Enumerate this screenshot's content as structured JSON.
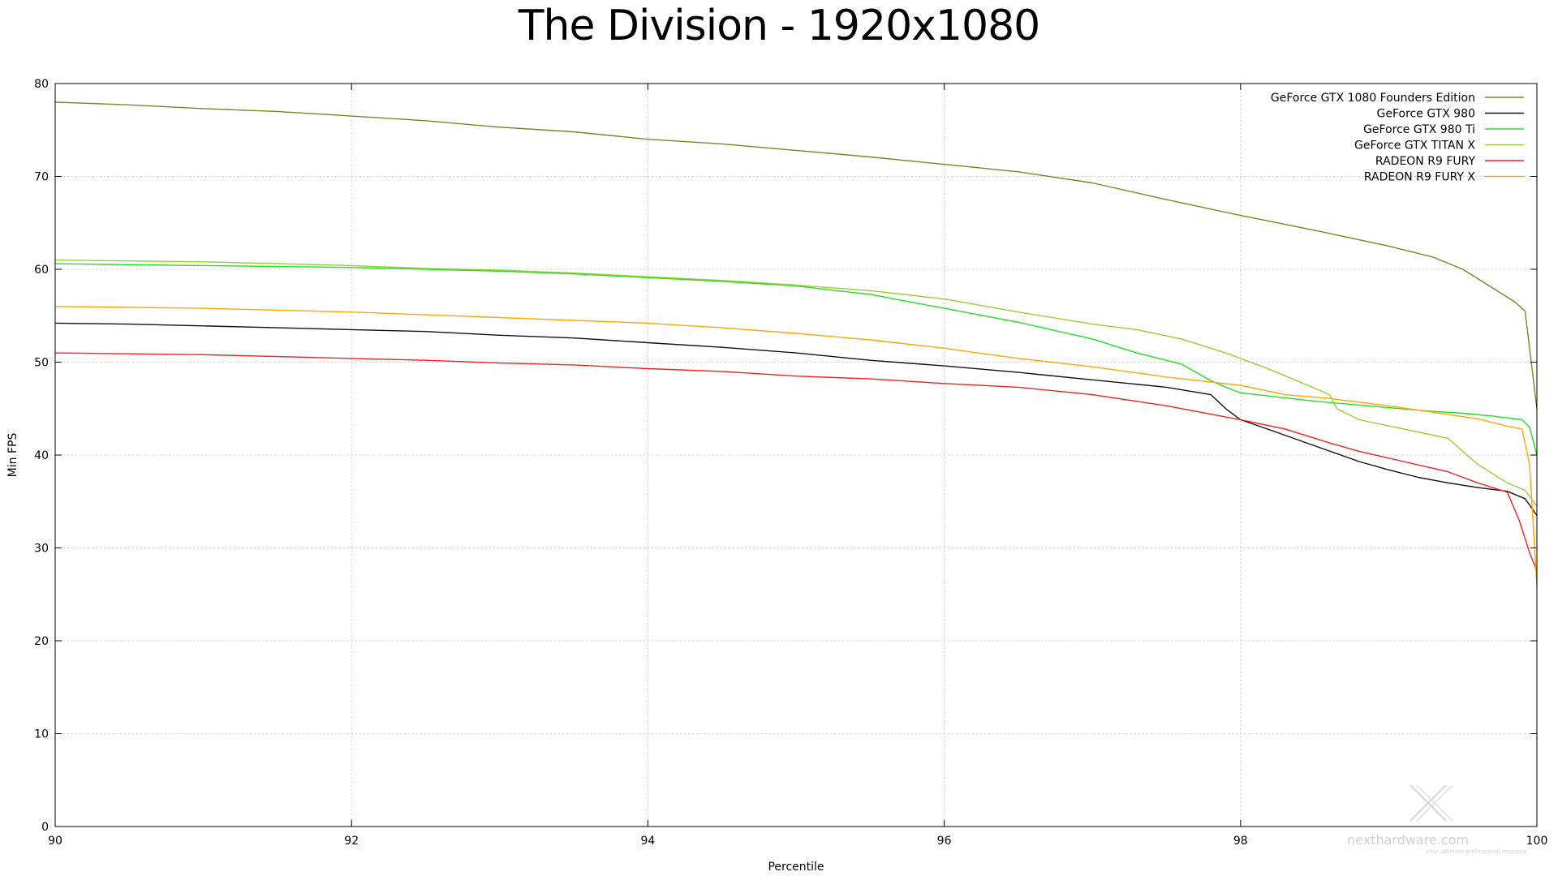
{
  "chart_data": {
    "type": "line",
    "title": "The Division - 1920x1080",
    "xlabel": "Percentile",
    "ylabel": "Min FPS",
    "xlim": [
      90,
      100
    ],
    "ylim": [
      0,
      80
    ],
    "xticks": [
      90,
      92,
      94,
      96,
      98,
      100
    ],
    "yticks": [
      0,
      10,
      20,
      30,
      40,
      50,
      60,
      70,
      80
    ],
    "grid": true,
    "legend_position": "top-right",
    "series": [
      {
        "name": "GeForce GTX 1080 Founders Edition",
        "color": "#6b8e23",
        "x": [
          90,
          90.5,
          91,
          91.5,
          92,
          92.5,
          93,
          93.5,
          94,
          94.5,
          95,
          95.5,
          96,
          96.5,
          97,
          97.5,
          98,
          98.5,
          99,
          99.3,
          99.5,
          99.7,
          99.85,
          99.92,
          100
        ],
        "y": [
          78,
          77.7,
          77.3,
          77,
          76.5,
          76,
          75.3,
          74.8,
          74,
          73.5,
          72.8,
          72.1,
          71.3,
          70.5,
          69.3,
          67.5,
          65.8,
          64.2,
          62.5,
          61.3,
          60,
          58,
          56.5,
          55.5,
          45
        ]
      },
      {
        "name": "GeForce GTX 980",
        "color": "#111111",
        "x": [
          90,
          90.5,
          91,
          91.5,
          92,
          92.5,
          93,
          93.5,
          94,
          94.5,
          95,
          95.5,
          96,
          96.5,
          97,
          97.5,
          97.8,
          97.9,
          98,
          98.2,
          98.5,
          98.8,
          99,
          99.2,
          99.4,
          99.6,
          99.8,
          99.92,
          100
        ],
        "y": [
          54.2,
          54.1,
          53.9,
          53.7,
          53.5,
          53.3,
          52.9,
          52.6,
          52.1,
          51.6,
          51,
          50.2,
          49.6,
          48.9,
          48.1,
          47.3,
          46.5,
          45,
          43.8,
          42.7,
          41,
          39.3,
          38.4,
          37.6,
          37,
          36.5,
          36.1,
          35.3,
          33.5
        ]
      },
      {
        "name": "GeForce GTX 980 Ti",
        "color": "#22dd22",
        "x": [
          90,
          90.5,
          91,
          91.5,
          92,
          92.5,
          93,
          93.5,
          94,
          94.5,
          95,
          95.5,
          96,
          96.5,
          97,
          97.3,
          97.6,
          97.8,
          97.9,
          98,
          98.5,
          99,
          99.3,
          99.5,
          99.7,
          99.9,
          99.95,
          100
        ],
        "y": [
          60.6,
          60.5,
          60.4,
          60.3,
          60.2,
          60.0,
          59.8,
          59.5,
          59.1,
          58.7,
          58.2,
          57.3,
          55.8,
          54.3,
          52.5,
          51.0,
          49.8,
          48.0,
          47.3,
          46.7,
          45.8,
          45.1,
          44.7,
          44.5,
          44.2,
          43.8,
          43.0,
          40.0
        ]
      },
      {
        "name": "GeForce GTX TITAN X",
        "color": "#9acd32",
        "x": [
          90,
          90.5,
          91,
          91.5,
          92,
          92.5,
          93,
          93.5,
          94,
          94.5,
          95,
          95.5,
          96,
          96.5,
          97,
          97.3,
          97.6,
          97.9,
          98.2,
          98.5,
          98.6,
          98.65,
          98.8,
          99.1,
          99.4,
          99.6,
          99.8,
          99.92,
          100
        ],
        "y": [
          61,
          60.9,
          60.8,
          60.6,
          60.4,
          60.1,
          59.9,
          59.6,
          59.2,
          58.8,
          58.3,
          57.7,
          56.8,
          55.4,
          54.1,
          53.5,
          52.5,
          51,
          49.2,
          47.2,
          46.5,
          45,
          43.8,
          42.8,
          41.8,
          39,
          37,
          36.2,
          34.5
        ]
      },
      {
        "name": "RADEON R9 FURY",
        "color": "#ee2222",
        "x": [
          90,
          90.5,
          91,
          91.5,
          92,
          92.5,
          93,
          93.5,
          94,
          94.5,
          95,
          95.5,
          96,
          96.5,
          97,
          97.5,
          98,
          98.3,
          98.6,
          98.8,
          99.1,
          99.4,
          99.6,
          99.8,
          99.88,
          99.95,
          100
        ],
        "y": [
          51,
          50.9,
          50.8,
          50.6,
          50.4,
          50.2,
          49.9,
          49.7,
          49.3,
          49,
          48.5,
          48.2,
          47.7,
          47.3,
          46.5,
          45.3,
          43.8,
          42.8,
          41.3,
          40.4,
          39.3,
          38.2,
          37,
          36,
          33,
          29.5,
          27.5
        ]
      },
      {
        "name": "RADEON R9 FURY X",
        "color": "#ffa500",
        "x": [
          90,
          90.5,
          91,
          91.5,
          92,
          92.5,
          93,
          93.5,
          94,
          94.5,
          95,
          95.5,
          96,
          96.5,
          97,
          97.5,
          98,
          98.3,
          98.6,
          99,
          99.3,
          99.6,
          99.8,
          99.9,
          99.95,
          100
        ],
        "y": [
          56,
          55.9,
          55.8,
          55.6,
          55.4,
          55.1,
          54.8,
          54.5,
          54.2,
          53.7,
          53.1,
          52.4,
          51.5,
          50.4,
          49.5,
          48.4,
          47.5,
          46.5,
          46.1,
          45.3,
          44.6,
          43.9,
          43.1,
          42.8,
          39.0,
          26
        ]
      }
    ]
  },
  "watermark": {
    "brand": "nexthardware.com",
    "tagline": "your ultimate professional resource"
  }
}
